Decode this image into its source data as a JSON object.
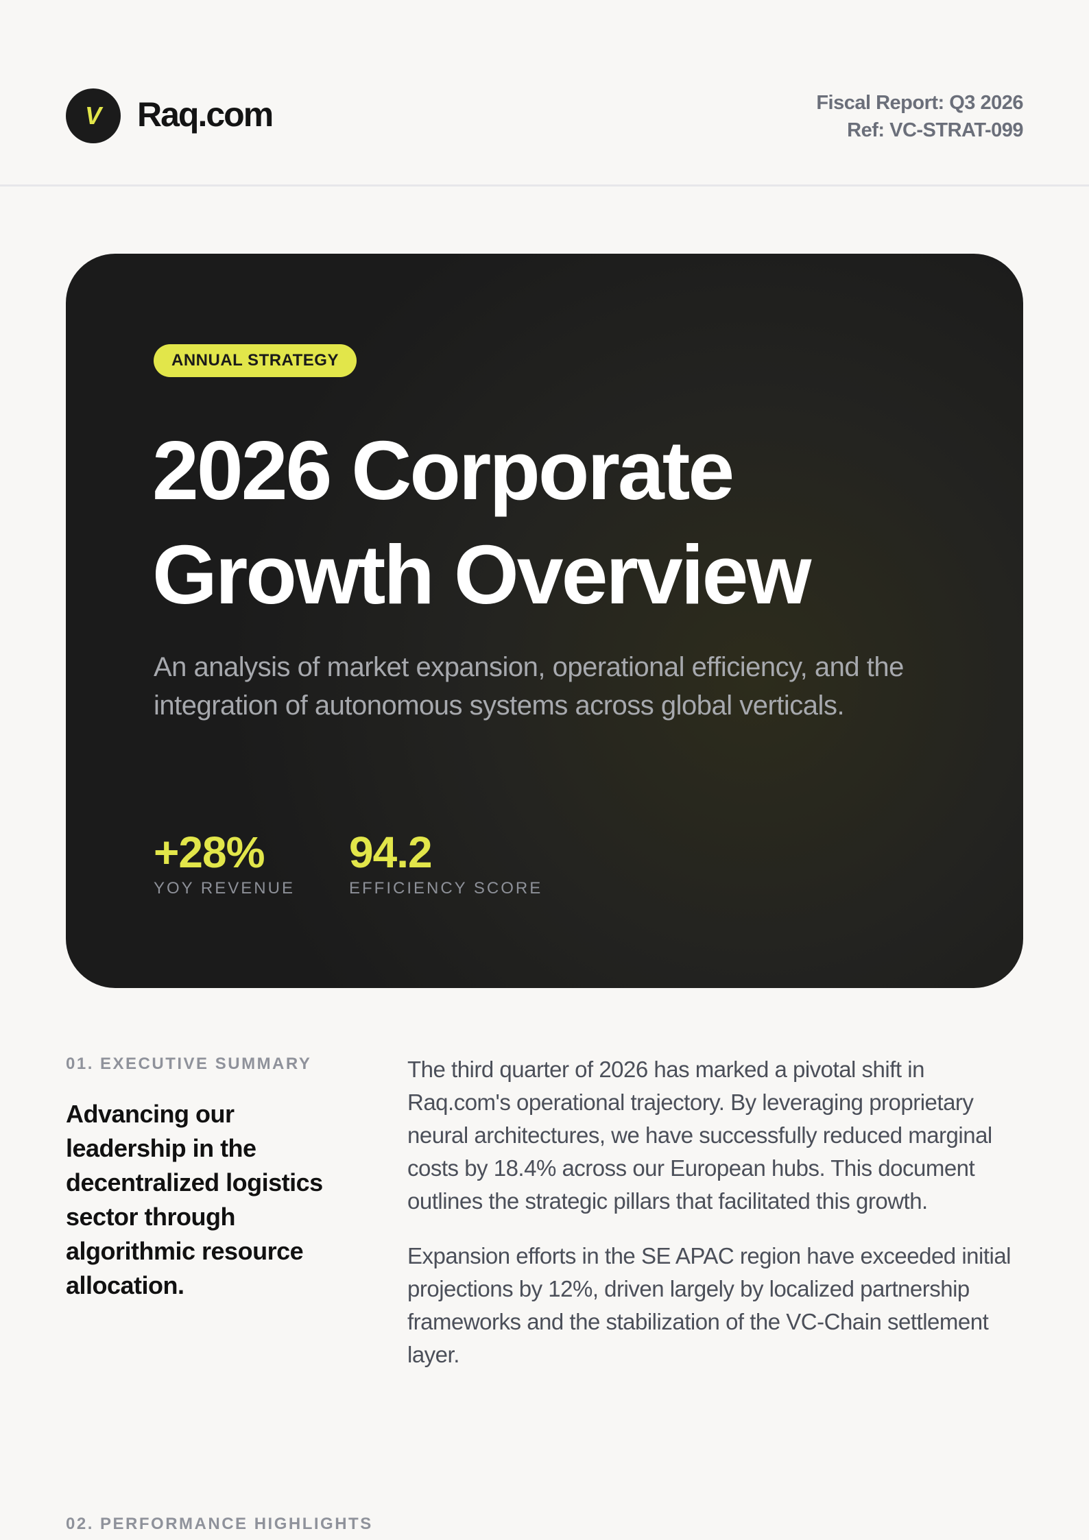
{
  "header": {
    "logo_letter": "V",
    "brand": "Raq.com",
    "fiscal_report": "Fiscal Report: Q3 2026",
    "ref": "Ref: VC-STRAT-099"
  },
  "hero": {
    "badge": "ANNUAL STRATEGY",
    "title_line1": "2026 Corporate",
    "title_line2": "Growth Overview",
    "subtitle": "An analysis of market expansion, operational efficiency, and the integration of autonomous systems across global verticals.",
    "stats": [
      {
        "value": "+28%",
        "label": "YOY REVENUE"
      },
      {
        "value": "94.2",
        "label": "EFFICIENCY SCORE"
      }
    ],
    "accent_color": "#e2e64a"
  },
  "executive_summary": {
    "label": "01. EXECUTIVE SUMMARY",
    "lead": "Advancing our leadership in the decentralized logistics sector through algorithmic resource allocation.",
    "paragraphs": [
      "The third quarter of 2026 has marked a pivotal shift in Raq.com's operational trajectory. By leveraging proprietary neural architectures, we have successfully reduced marginal costs by 18.4% across our European hubs. This document outlines the strategic pillars that facilitated this growth.",
      "Expansion efforts in the SE APAC region have exceeded initial projections by 12%, driven largely by localized partnership frameworks and the stabilization of the VC-Chain settlement layer."
    ]
  },
  "performance": {
    "label": "02. PERFORMANCE HIGHLIGHTS"
  }
}
